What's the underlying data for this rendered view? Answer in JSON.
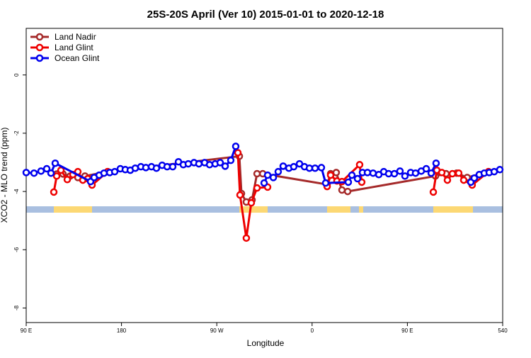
{
  "chart_data": {
    "type": "line",
    "title": "25S-20S April (Ver 10)   2015-01-01 to 2020-12-18",
    "xlabel": "Longitude",
    "ylabel": "XCO2 - MLO trend (ppm)",
    "xlim": [
      90,
      540
    ],
    "ylim": [
      -8.5,
      1.6
    ],
    "xticks": [
      {
        "value": 90,
        "label": "90 E"
      },
      180,
      {
        "value": 270,
        "label": "90 W"
      },
      {
        "value": 360,
        "label": "0"
      },
      {
        "value": 450,
        "label": "90 E"
      },
      540
    ],
    "yticks": [
      0,
      -2,
      -4,
      -6,
      -8
    ],
    "legend": "upper left",
    "series": [
      {
        "name": "Land Nadir",
        "color": "#a52a2a",
        "x": [
          118.8,
          124.8,
          131.5,
          138.8,
          145.5,
          166.9,
          291.3,
          293.3,
          297.9,
          303.3,
          308.0,
          313.4,
          374.2,
          377.5,
          382.8,
          388.2,
          393.6,
          476.5,
          486.5,
          496.5,
          506.5,
          526.6
        ],
        "values": [
          -3.4,
          -3.4,
          -3.47,
          -3.52,
          -3.47,
          -3.32,
          -2.79,
          -4.07,
          -4.36,
          -4.29,
          -3.39,
          -3.39,
          -3.76,
          -3.39,
          -3.35,
          -3.95,
          -4.0,
          -3.47,
          -3.39,
          -3.37,
          -3.52,
          -3.32
        ]
      },
      {
        "name": "Land Glint",
        "color": "#ee0000",
        "x": [
          116.1,
          118.8,
          122.8,
          128.8,
          134.1,
          138.8,
          143.5,
          148.2,
          152.2,
          166.9,
          null,
          289.9,
          291.9,
          297.9,
          302.6,
          308.0,
          318.0,
          null,
          374.2,
          377.5,
          383.5,
          388.2,
          404.9,
          406.9,
          null,
          474.5,
          477.8,
          482.5,
          487.8,
          492.5,
          498.5,
          503.2,
          511.2,
          526.6
        ],
        "values": [
          -4.02,
          -3.47,
          -3.27,
          -3.59,
          -3.42,
          -3.32,
          -3.61,
          -3.56,
          -3.78,
          -3.32,
          null,
          -2.67,
          -4.12,
          -5.6,
          -4.39,
          -3.88,
          -3.85,
          null,
          -3.83,
          -3.44,
          -3.64,
          -3.66,
          -3.08,
          -3.68,
          null,
          -4.02,
          -3.27,
          -3.35,
          -3.61,
          -3.39,
          -3.37,
          -3.61,
          -3.78,
          -3.32
        ]
      },
      {
        "name": "Ocean Glint",
        "color": "#0000ee",
        "x": [
          90,
          97.4,
          104.0,
          109.4,
          113.4,
          117.4,
          150.8,
          154.2,
          158.9,
          163.5,
          168.9,
          173.6,
          178.9,
          183.6,
          188.3,
          193.0,
          198.3,
          203.0,
          208.3,
          213.0,
          218.4,
          223.1,
          228.4,
          233.8,
          238.4,
          243.1,
          248.5,
          253.1,
          258.5,
          263.2,
          268.5,
          273.2,
          277.9,
          283.2,
          287.9,
          null,
          314.7,
          318.0,
          323.4,
          328.0,
          332.7,
          338.1,
          342.7,
          348.1,
          352.8,
          357.5,
          362.8,
          368.8,
          372.8,
          394.2,
          397.6,
          402.9,
          407.6,
          412.3,
          417.6,
          423.0,
          427.7,
          432.3,
          437.7,
          443.0,
          447.7,
          453.1,
          457.7,
          463.1,
          467.8,
          472.5,
          477.1,
          null,
          509.9,
          513.2,
          517.9,
          522.6,
          527.3,
          532.0,
          537.3
        ],
        "values": [
          -3.35,
          -3.37,
          -3.3,
          -3.22,
          -3.37,
          -3.03,
          -3.66,
          -3.52,
          -3.44,
          -3.37,
          -3.35,
          -3.32,
          -3.22,
          -3.25,
          -3.27,
          -3.2,
          -3.15,
          -3.18,
          -3.15,
          -3.2,
          -3.1,
          -3.15,
          -3.15,
          -2.98,
          -3.08,
          -3.05,
          -3.01,
          -3.05,
          -3.01,
          -3.08,
          -3.05,
          -3.01,
          -3.13,
          -2.93,
          -2.45,
          null,
          -3.71,
          -3.44,
          -3.52,
          -3.32,
          -3.13,
          -3.2,
          -3.15,
          -3.05,
          -3.15,
          -3.2,
          -3.2,
          -3.18,
          -3.71,
          -3.68,
          -3.44,
          -3.56,
          -3.35,
          -3.35,
          -3.37,
          -3.42,
          -3.32,
          -3.39,
          -3.39,
          -3.3,
          -3.47,
          -3.35,
          -3.37,
          -3.3,
          -3.22,
          -3.37,
          -3.03,
          null,
          -3.68,
          -3.54,
          -3.42,
          -3.37,
          -3.35,
          -3.32,
          -3.25
        ]
      }
    ]
  }
}
